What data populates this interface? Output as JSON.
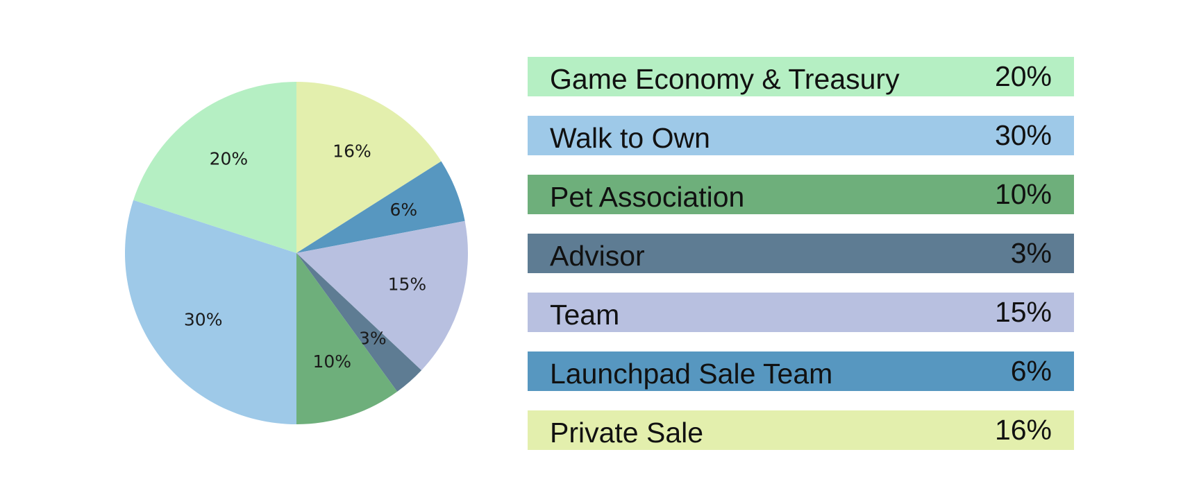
{
  "chart_data": {
    "type": "pie",
    "title": "",
    "slices": [
      {
        "label": "Private Sale",
        "value": 16,
        "value_label": "16%",
        "color": "#e3efad"
      },
      {
        "label": "Launchpad Sale Team",
        "value": 6,
        "value_label": "6%",
        "color": "#5797c0"
      },
      {
        "label": "Team",
        "value": 15,
        "value_label": "15%",
        "color": "#b8c0e0"
      },
      {
        "label": "Advisor",
        "value": 3,
        "value_label": "3%",
        "color": "#5e7c93"
      },
      {
        "label": "Pet Association",
        "value": 10,
        "value_label": "10%",
        "color": "#6eaf7b"
      },
      {
        "label": "Walk to Own",
        "value": 30,
        "value_label": "30%",
        "color": "#9ec9e8"
      },
      {
        "label": "Game Economy & Treasury",
        "value": 20,
        "value_label": "20%",
        "color": "#b5efc3"
      }
    ],
    "start": "12 o'clock",
    "direction": "clockwise"
  },
  "legend": {
    "placement": "right",
    "items": [
      {
        "label": "Game Economy & Treasury",
        "value_label": "20%",
        "color": "#b5efc3"
      },
      {
        "label": "Walk to Own",
        "value_label": "30%",
        "color": "#9ec9e8"
      },
      {
        "label": "Pet Association",
        "value_label": "10%",
        "color": "#6eaf7b"
      },
      {
        "label": "Advisor",
        "value_label": "3%",
        "color": "#5e7c93"
      },
      {
        "label": "Team",
        "value_label": "15%",
        "color": "#b8c0e0"
      },
      {
        "label": "Launchpad Sale Team",
        "value_label": "6%",
        "color": "#5797c0"
      },
      {
        "label": "Private Sale",
        "value_label": "16%",
        "color": "#e3efad"
      }
    ]
  }
}
